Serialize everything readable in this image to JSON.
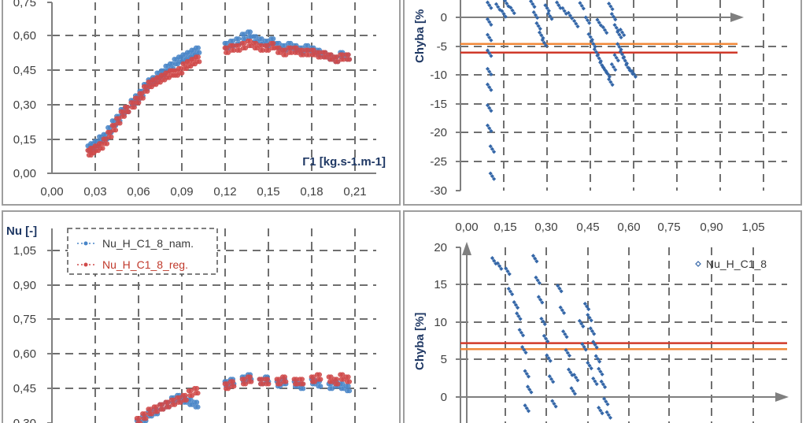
{
  "chart_data": [
    {
      "type": "scatter",
      "title": "",
      "xlabel": "Γ1 [kg.s-1.m-1]",
      "ylabel": "",
      "xticks": [
        "0,00",
        "0,03",
        "0,06",
        "0,09",
        "0,12",
        "0,15",
        "0,18",
        "0,21"
      ],
      "yticks": [
        "0,00",
        "0,15",
        "0,30",
        "0,45",
        "0,60",
        "0,75"
      ],
      "xlim": [
        0,
        0.22
      ],
      "ylim": [
        0,
        0.75
      ],
      "grid": true,
      "legend": "none",
      "colors": [
        "#4a86c8",
        "#d04a4a"
      ],
      "series": [
        {
          "values": [
            [
              0.026,
              0.11
            ],
            [
              0.028,
              0.12
            ],
            [
              0.031,
              0.13
            ],
            [
              0.034,
              0.15
            ],
            [
              0.037,
              0.16
            ],
            [
              0.04,
              0.19
            ],
            [
              0.043,
              0.22
            ],
            [
              0.046,
              0.24
            ],
            [
              0.049,
              0.27
            ],
            [
              0.052,
              0.28
            ],
            [
              0.056,
              0.31
            ],
            [
              0.059,
              0.33
            ],
            [
              0.062,
              0.35
            ],
            [
              0.065,
              0.38
            ],
            [
              0.068,
              0.4
            ],
            [
              0.071,
              0.41
            ],
            [
              0.074,
              0.43
            ],
            [
              0.077,
              0.44
            ],
            [
              0.08,
              0.46
            ],
            [
              0.083,
              0.47
            ],
            [
              0.086,
              0.49
            ],
            [
              0.089,
              0.5
            ],
            [
              0.092,
              0.51
            ],
            [
              0.095,
              0.52
            ],
            [
              0.098,
              0.53
            ],
            [
              0.101,
              0.54
            ],
            [
              0.121,
              0.56
            ],
            [
              0.125,
              0.57
            ],
            [
              0.129,
              0.58
            ],
            [
              0.133,
              0.6
            ],
            [
              0.137,
              0.61
            ],
            [
              0.141,
              0.59
            ],
            [
              0.145,
              0.58
            ],
            [
              0.149,
              0.57
            ],
            [
              0.153,
              0.58
            ],
            [
              0.157,
              0.56
            ],
            [
              0.161,
              0.55
            ],
            [
              0.165,
              0.56
            ],
            [
              0.169,
              0.55
            ],
            [
              0.173,
              0.54
            ],
            [
              0.177,
              0.55
            ],
            [
              0.181,
              0.54
            ],
            [
              0.185,
              0.53
            ],
            [
              0.189,
              0.52
            ],
            [
              0.193,
              0.51
            ],
            [
              0.197,
              0.5
            ],
            [
              0.201,
              0.52
            ],
            [
              0.205,
              0.51
            ]
          ]
        },
        {
          "values": [
            [
              0.026,
              0.09
            ],
            [
              0.028,
              0.1
            ],
            [
              0.031,
              0.11
            ],
            [
              0.034,
              0.12
            ],
            [
              0.037,
              0.14
            ],
            [
              0.04,
              0.17
            ],
            [
              0.043,
              0.2
            ],
            [
              0.046,
              0.23
            ],
            [
              0.049,
              0.26
            ],
            [
              0.052,
              0.28
            ],
            [
              0.056,
              0.3
            ],
            [
              0.059,
              0.32
            ],
            [
              0.062,
              0.34
            ],
            [
              0.065,
              0.37
            ],
            [
              0.068,
              0.39
            ],
            [
              0.071,
              0.4
            ],
            [
              0.074,
              0.41
            ],
            [
              0.077,
              0.42
            ],
            [
              0.08,
              0.43
            ],
            [
              0.083,
              0.44
            ],
            [
              0.086,
              0.44
            ],
            [
              0.089,
              0.45
            ],
            [
              0.092,
              0.47
            ],
            [
              0.095,
              0.48
            ],
            [
              0.098,
              0.49
            ],
            [
              0.101,
              0.5
            ],
            [
              0.121,
              0.54
            ],
            [
              0.125,
              0.55
            ],
            [
              0.129,
              0.55
            ],
            [
              0.133,
              0.56
            ],
            [
              0.137,
              0.57
            ],
            [
              0.141,
              0.56
            ],
            [
              0.145,
              0.55
            ],
            [
              0.149,
              0.55
            ],
            [
              0.153,
              0.56
            ],
            [
              0.157,
              0.54
            ],
            [
              0.161,
              0.53
            ],
            [
              0.165,
              0.54
            ],
            [
              0.169,
              0.54
            ],
            [
              0.173,
              0.53
            ],
            [
              0.177,
              0.53
            ],
            [
              0.181,
              0.53
            ],
            [
              0.185,
              0.52
            ],
            [
              0.189,
              0.52
            ],
            [
              0.193,
              0.51
            ],
            [
              0.197,
              0.5
            ],
            [
              0.201,
              0.51
            ],
            [
              0.205,
              0.51
            ]
          ]
        }
      ]
    },
    {
      "type": "scatter",
      "title": "",
      "xlabel": "",
      "ylabel": "Chyba [%",
      "xticks": [],
      "yticks": [
        "0",
        "-5",
        "-10",
        "-15",
        "-20",
        "-25",
        "-30"
      ],
      "ylim": [
        -30,
        3
      ],
      "xlim": [
        0,
        1.1
      ],
      "grid": true,
      "legend": "none",
      "colors": [
        "#3567a8",
        "#f0883a",
        "#d03a2a",
        "#7a7a7a"
      ],
      "hlines": [
        -4.6,
        -6.1
      ],
      "series": [
        {
          "values": [
            [
              0.1,
              2.1
            ],
            [
              0.1,
              -0.8
            ],
            [
              0.1,
              -3.5
            ],
            [
              0.1,
              -6.2
            ],
            [
              0.1,
              -9.4
            ],
            [
              0.1,
              -12.1
            ],
            [
              0.1,
              -15.7
            ],
            [
              0.1,
              -19.2
            ],
            [
              0.11,
              -22.8
            ],
            [
              0.11,
              -27.5
            ],
            [
              0.13,
              1.8
            ],
            [
              0.15,
              0.6
            ],
            [
              0.16,
              2.4
            ],
            [
              0.18,
              1.2
            ],
            [
              0.25,
              2.3
            ],
            [
              0.26,
              0.4
            ],
            [
              0.27,
              -1.5
            ],
            [
              0.28,
              -3.1
            ],
            [
              0.29,
              -4.4
            ],
            [
              0.3,
              1.6
            ],
            [
              0.31,
              0.2
            ],
            [
              0.34,
              2.1
            ],
            [
              0.36,
              1.1
            ],
            [
              0.38,
              0.3
            ],
            [
              0.4,
              -1.1
            ],
            [
              0.42,
              2.0
            ],
            [
              0.44,
              -0.5
            ],
            [
              0.45,
              -3.4
            ],
            [
              0.46,
              -4.6
            ],
            [
              0.47,
              -6.0
            ],
            [
              0.48,
              -7.1
            ],
            [
              0.49,
              -8.3
            ],
            [
              0.5,
              -9.1
            ],
            [
              0.51,
              -9.8
            ],
            [
              0.52,
              -11.2
            ],
            [
              0.53,
              -8.6
            ],
            [
              0.54,
              -7.0
            ],
            [
              0.55,
              -5.1
            ],
            [
              0.56,
              -6.4
            ],
            [
              0.57,
              -7.5
            ],
            [
              0.58,
              -8.7
            ],
            [
              0.59,
              -9.3
            ],
            [
              0.6,
              -9.8
            ],
            [
              0.52,
              1.9
            ],
            [
              0.53,
              0.1
            ],
            [
              0.54,
              -1.8
            ],
            [
              0.55,
              -3.0
            ],
            [
              0.5,
              -2.2
            ],
            [
              0.48,
              -0.9
            ],
            [
              0.56,
              -2.6
            ]
          ]
        }
      ]
    },
    {
      "type": "scatter",
      "title": "",
      "xlabel": "",
      "ylabel": "Nu [-]",
      "xticks": [],
      "yticks": [
        "0,30",
        "0,45",
        "0,60",
        "0,75",
        "0,90",
        "1,05"
      ],
      "xlim": [
        0,
        0.22
      ],
      "ylim": [
        0.3,
        1.1
      ],
      "grid": true,
      "legend": "top-left",
      "colors": [
        "#4a86c8",
        "#d04a4a"
      ],
      "series": [
        {
          "name": "Nu_H_C1_8_nam.",
          "values": [
            [
              0.06,
              0.3
            ],
            [
              0.064,
              0.32
            ],
            [
              0.068,
              0.34
            ],
            [
              0.072,
              0.35
            ],
            [
              0.076,
              0.37
            ],
            [
              0.08,
              0.38
            ],
            [
              0.084,
              0.4
            ],
            [
              0.088,
              0.41
            ],
            [
              0.092,
              0.4
            ],
            [
              0.096,
              0.39
            ],
            [
              0.1,
              0.38
            ],
            [
              0.121,
              0.47
            ],
            [
              0.125,
              0.48
            ],
            [
              0.133,
              0.49
            ],
            [
              0.137,
              0.5
            ],
            [
              0.145,
              0.48
            ],
            [
              0.149,
              0.49
            ],
            [
              0.157,
              0.47
            ],
            [
              0.161,
              0.48
            ],
            [
              0.169,
              0.47
            ],
            [
              0.173,
              0.46
            ],
            [
              0.181,
              0.48
            ],
            [
              0.185,
              0.47
            ],
            [
              0.193,
              0.46
            ],
            [
              0.197,
              0.47
            ],
            [
              0.201,
              0.46
            ],
            [
              0.205,
              0.45
            ]
          ]
        },
        {
          "name": "Nu_H_C1_8_reg.",
          "values": [
            [
              0.06,
              0.31
            ],
            [
              0.064,
              0.33
            ],
            [
              0.068,
              0.35
            ],
            [
              0.072,
              0.36
            ],
            [
              0.076,
              0.37
            ],
            [
              0.08,
              0.38
            ],
            [
              0.084,
              0.39
            ],
            [
              0.088,
              0.4
            ],
            [
              0.092,
              0.41
            ],
            [
              0.096,
              0.43
            ],
            [
              0.1,
              0.44
            ],
            [
              0.121,
              0.46
            ],
            [
              0.125,
              0.47
            ],
            [
              0.133,
              0.48
            ],
            [
              0.137,
              0.49
            ],
            [
              0.145,
              0.48
            ],
            [
              0.149,
              0.48
            ],
            [
              0.157,
              0.48
            ],
            [
              0.161,
              0.49
            ],
            [
              0.169,
              0.48
            ],
            [
              0.173,
              0.48
            ],
            [
              0.181,
              0.49
            ],
            [
              0.185,
              0.5
            ],
            [
              0.193,
              0.49
            ],
            [
              0.197,
              0.48
            ],
            [
              0.201,
              0.5
            ],
            [
              0.205,
              0.49
            ]
          ]
        }
      ]
    },
    {
      "type": "scatter",
      "title": "",
      "xlabel": "",
      "ylabel": "Chyba [%]",
      "xticks": [
        "0,00",
        "0,15",
        "0,30",
        "0,45",
        "0,60",
        "0,75",
        "0,90",
        "1,05"
      ],
      "yticks": [
        "20",
        "15",
        "10",
        "5",
        "0"
      ],
      "xlim": [
        0,
        1.1
      ],
      "ylim": [
        -3.5,
        20
      ],
      "grid": true,
      "legend": "top-right",
      "colors": [
        "#3567a8",
        "#d03a2a",
        "#f0883a",
        "#7a7a7a"
      ],
      "hlines": [
        7.2,
        6.4
      ],
      "series": [
        {
          "name": "Nu_H_C1_8",
          "values": [
            [
              0.1,
              18.2
            ],
            [
              0.12,
              17.5
            ],
            [
              0.15,
              16.8
            ],
            [
              0.16,
              14.1
            ],
            [
              0.18,
              12.3
            ],
            [
              0.19,
              10.8
            ],
            [
              0.2,
              8.6
            ],
            [
              0.21,
              6.3
            ],
            [
              0.22,
              3.1
            ],
            [
              0.22,
              -1.5
            ],
            [
              0.25,
              18.5
            ],
            [
              0.26,
              15.6
            ],
            [
              0.27,
              13.0
            ],
            [
              0.28,
              10.1
            ],
            [
              0.29,
              7.8
            ],
            [
              0.3,
              5.2
            ],
            [
              0.31,
              2.4
            ],
            [
              0.32,
              -0.9
            ],
            [
              0.34,
              14.5
            ],
            [
              0.35,
              11.6
            ],
            [
              0.36,
              8.4
            ],
            [
              0.37,
              5.9
            ],
            [
              0.38,
              3.3
            ],
            [
              0.39,
              0.8
            ],
            [
              0.42,
              9.8
            ],
            [
              0.43,
              6.7
            ],
            [
              0.44,
              12.1
            ],
            [
              0.45,
              10.6
            ],
            [
              0.46,
              8.8
            ],
            [
              0.47,
              7.0
            ],
            [
              0.48,
              5.1
            ],
            [
              0.49,
              3.4
            ],
            [
              0.5,
              1.7
            ],
            [
              0.51,
              -0.6
            ],
            [
              0.52,
              -2.4
            ],
            [
              0.45,
              4.2
            ],
            [
              0.47,
              2.1
            ],
            [
              0.49,
              -1.8
            ],
            [
              0.23,
              1.0
            ],
            [
              0.4,
              2.6
            ]
          ]
        }
      ]
    }
  ]
}
